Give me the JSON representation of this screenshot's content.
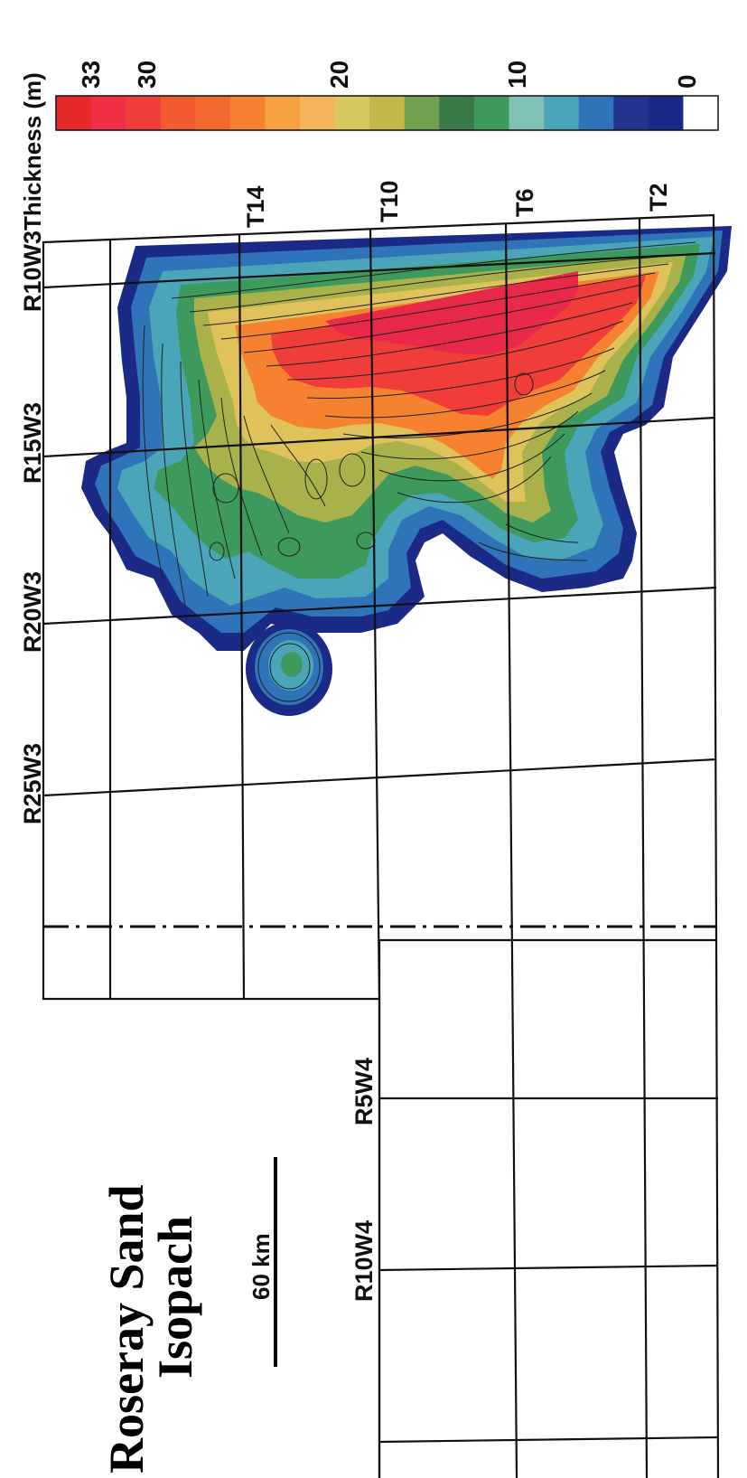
{
  "map": {
    "title_line1": "Roseray Sand",
    "title_line2": "Isopach",
    "scale_bar_label": "60 km",
    "range_labels_w3": [
      "R10W3",
      "R15W3",
      "R20W3",
      "R25W3"
    ],
    "range_labels_w4": [
      "R5W4",
      "R10W4"
    ],
    "township_labels": [
      "T14",
      "T10",
      "T6",
      "T2"
    ],
    "legend": {
      "title": "Thickness (m)",
      "tick_labels": [
        "33",
        "30",
        "20",
        "10",
        "0"
      ],
      "colors": [
        "#e8292a",
        "#ee2f45",
        "#f03d3a",
        "#f25a2f",
        "#f46a2e",
        "#f6822f",
        "#f7a040",
        "#f4b45a",
        "#d8c860",
        "#c2b84a",
        "#6fa14e",
        "#3a7a48",
        "#3d9a5c",
        "#7fc2b4",
        "#4aa5b8",
        "#2f74b8",
        "#23358f",
        "#1a2a86",
        "#ffffff"
      ]
    },
    "isopach_colors": {
      "outer": "#1a2a86",
      "band_blue": "#2f74b8",
      "band_teal": "#4aa5b8",
      "band_green": "#3d9a5c",
      "band_olive": "#a8b14a",
      "band_yellow": "#e0c25a",
      "band_orange": "#f6822f",
      "band_red": "#f03d3a",
      "band_max": "#e8294a"
    }
  }
}
